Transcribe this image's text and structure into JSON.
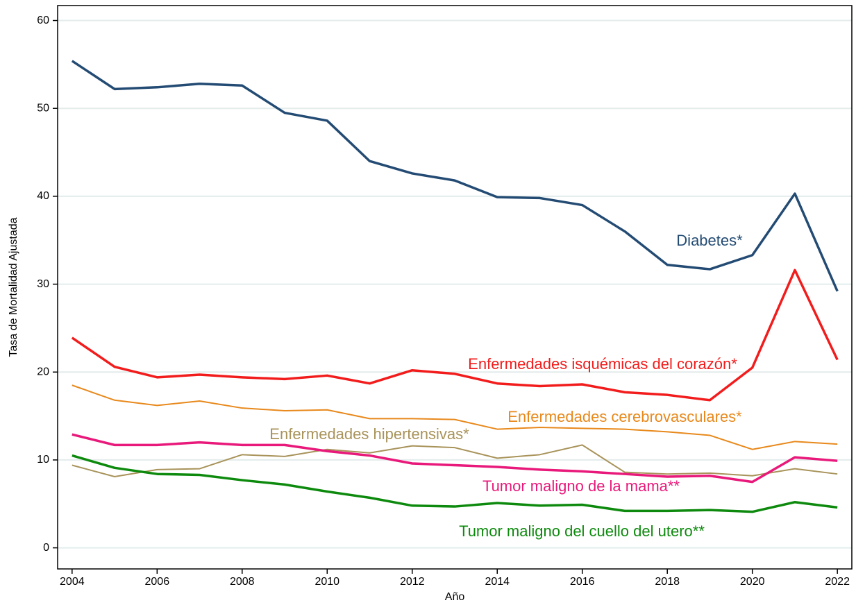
{
  "chart_data": {
    "type": "line",
    "xlabel": "Año",
    "ylabel": "Tasa de Mortalidad Ajustada",
    "x": [
      2004,
      2005,
      2006,
      2007,
      2008,
      2009,
      2010,
      2011,
      2012,
      2013,
      2014,
      2015,
      2016,
      2017,
      2018,
      2019,
      2020,
      2021,
      2022
    ],
    "series": [
      {
        "name": "Diabetes*",
        "color": "#234b73",
        "values": [
          55.4,
          52.2,
          52.4,
          52.8,
          52.6,
          49.5,
          48.6,
          44.0,
          42.6,
          41.8,
          39.9,
          39.8,
          39.0,
          36.0,
          32.2,
          31.7,
          33.3,
          40.3,
          29.2
        ]
      },
      {
        "name": "Enfermedades isquémicas del corazón*",
        "color": "#f21c1c",
        "values": [
          23.9,
          20.6,
          19.4,
          19.7,
          19.4,
          19.2,
          19.6,
          18.7,
          20.2,
          19.8,
          18.7,
          18.4,
          18.6,
          17.7,
          17.4,
          16.8,
          20.5,
          31.6,
          21.4
        ]
      },
      {
        "name": "Enfermedades cerebrovasculares*",
        "color": "#e8891c",
        "values": [
          18.5,
          16.8,
          16.2,
          16.7,
          15.9,
          15.6,
          15.7,
          14.7,
          14.7,
          14.6,
          13.5,
          13.7,
          13.6,
          13.5,
          13.2,
          12.8,
          11.2,
          12.1,
          11.8
        ]
      },
      {
        "name": "Enfermedades hipertensivas*",
        "color": "#a8935a",
        "values": [
          9.4,
          8.1,
          8.9,
          9.0,
          10.6,
          10.4,
          11.2,
          10.8,
          11.6,
          11.4,
          10.2,
          10.6,
          11.7,
          8.6,
          8.4,
          8.5,
          8.2,
          9.0,
          8.4
        ]
      },
      {
        "name": "Tumor maligno de la mama**",
        "color": "#e8197a",
        "values": [
          12.9,
          11.7,
          11.7,
          12.0,
          11.7,
          11.7,
          11.0,
          10.5,
          9.6,
          9.4,
          9.2,
          8.9,
          8.7,
          8.4,
          8.1,
          8.2,
          7.5,
          10.3,
          9.9
        ]
      },
      {
        "name": "Tumor maligno del cuello del utero**",
        "color": "#0d8a0d",
        "values": [
          10.5,
          9.1,
          8.4,
          8.3,
          7.7,
          7.2,
          6.4,
          5.7,
          4.8,
          4.7,
          5.1,
          4.8,
          4.9,
          4.2,
          4.2,
          4.3,
          4.1,
          5.2,
          4.6
        ]
      }
    ],
    "xlim": [
      2003.66,
      2022.34
    ],
    "xticks": [
      2004,
      2006,
      2008,
      2010,
      2012,
      2014,
      2016,
      2018,
      2020,
      2022
    ],
    "ylim": [
      -2.4,
      61.7
    ],
    "yticks": [
      0,
      10,
      20,
      30,
      40,
      50,
      60
    ],
    "grid": true
  }
}
